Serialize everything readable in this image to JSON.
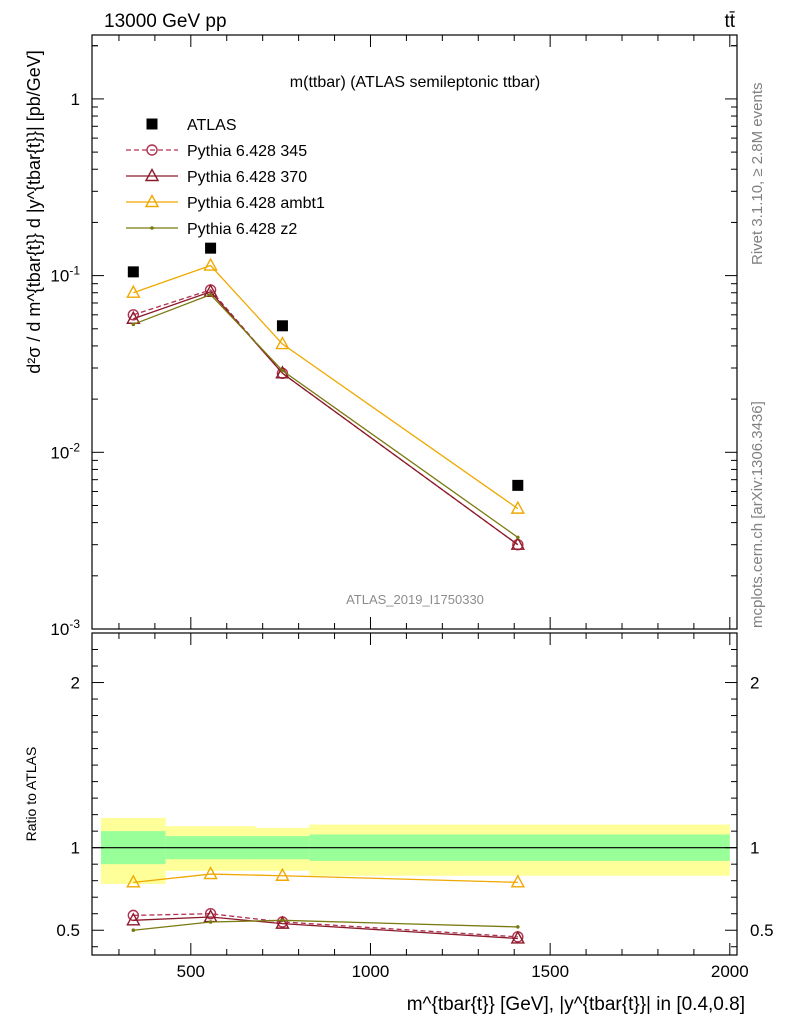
{
  "header": {
    "left": "13000 GeV pp",
    "right": "tt̄"
  },
  "side_labels": {
    "rivet": "Rivet 3.1.10, ≥ 2.8M events",
    "mcplots": "mcplots.cern.ch [arXiv:1306.3436]"
  },
  "chart_data": [
    {
      "type": "scatter",
      "panel": "main",
      "title": "m(ttbar) (ATLAS semileptonic ttbar)",
      "watermark": "ATLAS_2019_I1750330",
      "ylabel": "d²σ / d m^{tbar{t}} d |y^{tbar{t}}| [pb/GeV]",
      "yscale": "log",
      "ylim": [
        0.001,
        2.3
      ],
      "xlim": [
        225,
        2020
      ],
      "y_ticks": [
        {
          "value": 1,
          "label": "1"
        },
        {
          "value": 0.1,
          "label": "10^-1"
        },
        {
          "value": 0.01,
          "label": "10^-2"
        },
        {
          "value": 0.001,
          "label": "10^-3"
        }
      ],
      "legend_position": "top-left",
      "x": [
        340,
        555,
        755,
        1410
      ],
      "series": [
        {
          "name": "ATLAS",
          "color": "#000000",
          "marker": "square",
          "line": "none",
          "values": [
            0.105,
            0.143,
            0.052,
            0.0065
          ]
        },
        {
          "name": "Pythia 6.428 345",
          "color": "#b03050",
          "marker": "circle-open",
          "line": "dashed",
          "values": [
            0.06,
            0.083,
            0.028,
            0.003
          ]
        },
        {
          "name": "Pythia 6.428 370",
          "color": "#8b1a2a",
          "marker": "triangle-open",
          "line": "solid",
          "values": [
            0.057,
            0.081,
            0.028,
            0.003
          ]
        },
        {
          "name": "Pythia 6.428 ambt1",
          "color": "#f0a800",
          "marker": "triangle-open",
          "line": "solid",
          "values": [
            0.08,
            0.114,
            0.041,
            0.0048
          ]
        },
        {
          "name": "Pythia 6.428 z2",
          "color": "#7a7a10",
          "marker": "dot",
          "line": "solid",
          "values": [
            0.053,
            0.078,
            0.029,
            0.0033
          ]
        }
      ]
    },
    {
      "type": "line",
      "panel": "ratio",
      "ylabel": "Ratio to ATLAS",
      "xlabel": "m^{tbar{t}} [GeV], |y^{tbar{t}}| in [0.4,0.8]",
      "ylim": [
        0.35,
        2.3
      ],
      "xlim": [
        225,
        2020
      ],
      "y_ticks": [
        {
          "value": 2,
          "label": "2"
        },
        {
          "value": 1,
          "label": "1"
        },
        {
          "value": 0.5,
          "label": "0.5"
        }
      ],
      "x_ticks": [
        {
          "value": 500,
          "label": "500"
        },
        {
          "value": 1000,
          "label": "1000"
        },
        {
          "value": 1500,
          "label": "1500"
        },
        {
          "value": 2000,
          "label": "2000"
        }
      ],
      "bands": [
        {
          "x0": 250,
          "x1": 430,
          "stat": [
            0.9,
            1.1
          ],
          "total": [
            0.78,
            1.18
          ]
        },
        {
          "x0": 430,
          "x1": 680,
          "stat": [
            0.93,
            1.07
          ],
          "total": [
            0.86,
            1.13
          ]
        },
        {
          "x0": 680,
          "x1": 830,
          "stat": [
            0.93,
            1.07
          ],
          "total": [
            0.86,
            1.12
          ]
        },
        {
          "x0": 830,
          "x1": 2000,
          "stat": [
            0.92,
            1.08
          ],
          "total": [
            0.83,
            1.14
          ]
        }
      ],
      "x": [
        340,
        555,
        755,
        1410
      ],
      "series": [
        {
          "name": "Pythia 6.428 345",
          "color": "#b03050",
          "marker": "circle-open",
          "line": "dashed",
          "values": [
            0.59,
            0.6,
            0.55,
            0.46
          ]
        },
        {
          "name": "Pythia 6.428 370",
          "color": "#8b1a2a",
          "marker": "triangle-open",
          "line": "solid",
          "values": [
            0.56,
            0.58,
            0.54,
            0.45
          ]
        },
        {
          "name": "Pythia 6.428 ambt1",
          "color": "#f0a800",
          "marker": "triangle-open",
          "line": "solid",
          "values": [
            0.79,
            0.84,
            0.83,
            0.79
          ]
        },
        {
          "name": "Pythia 6.428 z2",
          "color": "#7a7a10",
          "marker": "dot",
          "line": "solid",
          "values": [
            0.5,
            0.55,
            0.56,
            0.52
          ]
        }
      ]
    }
  ],
  "colors": {
    "band_stat": "#99ff99",
    "band_total": "#ffff99"
  }
}
